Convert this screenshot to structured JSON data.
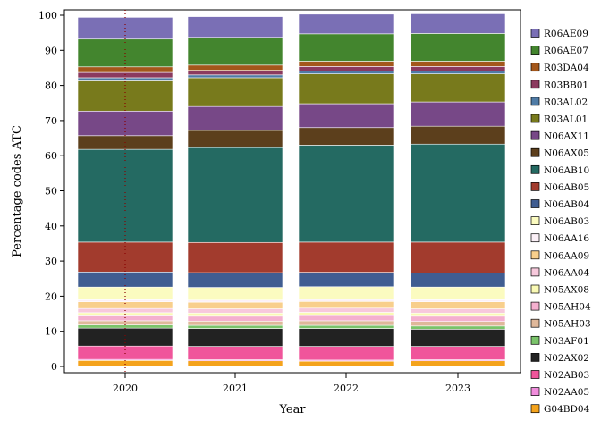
{
  "chart_data": {
    "type": "bar",
    "stacked": true,
    "title": "",
    "xlabel": "Year",
    "ylabel": "Percentage codes ATC",
    "categories": [
      "2020",
      "2021",
      "2022",
      "2023"
    ],
    "ylim": [
      0,
      100
    ],
    "yticks": [
      0,
      10,
      20,
      30,
      40,
      50,
      60,
      70,
      80,
      90,
      100
    ],
    "grid": false,
    "legend_position": "right",
    "reference_line": {
      "x": "2020",
      "style": "dotted",
      "color": "#8b0000"
    },
    "series": [
      {
        "name": "G04BD04",
        "color": "#f4a31c",
        "values": [
          1.7,
          1.6,
          1.5,
          1.6
        ]
      },
      {
        "name": "N02AA05",
        "color": "#f08cdc",
        "values": [
          0.3,
          0.3,
          0.3,
          0.3
        ]
      },
      {
        "name": "N02AB03",
        "color": "#f0559b",
        "values": [
          3.8,
          3.8,
          3.9,
          3.8
        ]
      },
      {
        "name": "N02AX02",
        "color": "#222222",
        "values": [
          5.1,
          5.1,
          5.1,
          4.9
        ]
      },
      {
        "name": "N03AF01",
        "color": "#7ac36a",
        "values": [
          0.9,
          0.9,
          0.9,
          0.9
        ]
      },
      {
        "name": "N05AH03",
        "color": "#dfb89a",
        "values": [
          1.2,
          1.2,
          1.3,
          1.3
        ]
      },
      {
        "name": "N05AH04",
        "color": "#f4b0cf",
        "values": [
          1.4,
          1.4,
          1.5,
          1.5
        ]
      },
      {
        "name": "N05AX08",
        "color": "#fafab5",
        "values": [
          0.9,
          0.9,
          0.9,
          0.9
        ]
      },
      {
        "name": "N06AA04",
        "color": "#f7c9dc",
        "values": [
          1.2,
          1.2,
          1.2,
          1.2
        ]
      },
      {
        "name": "N06AA09",
        "color": "#f8cf8c",
        "values": [
          1.9,
          1.9,
          1.9,
          2.0
        ]
      },
      {
        "name": "N06AA16",
        "color": "#fbf0f7",
        "values": [
          0.6,
          0.6,
          0.6,
          0.6
        ]
      },
      {
        "name": "N06AB03",
        "color": "#fbfbc0",
        "values": [
          3.6,
          3.6,
          3.6,
          3.6
        ]
      },
      {
        "name": "N06AB04",
        "color": "#405d91",
        "values": [
          4.3,
          4.2,
          4.1,
          4.0
        ]
      },
      {
        "name": "N06AB05",
        "color": "#a23b2d",
        "values": [
          8.5,
          8.6,
          8.6,
          8.8
        ]
      },
      {
        "name": "N06AB10",
        "color": "#246a62",
        "values": [
          26.4,
          27.0,
          27.6,
          27.9
        ]
      },
      {
        "name": "N06AX05",
        "color": "#5c3f1c",
        "values": [
          3.9,
          4.9,
          5.0,
          5.1
        ]
      },
      {
        "name": "N06AX11",
        "color": "#774887",
        "values": [
          7.0,
          6.8,
          6.8,
          6.9
        ]
      },
      {
        "name": "R03AL01",
        "color": "#787a1c",
        "values": [
          8.6,
          8.2,
          8.5,
          8.0
        ]
      },
      {
        "name": "R03AL02",
        "color": "#4f7ba5",
        "values": [
          0.9,
          0.8,
          0.8,
          0.8
        ]
      },
      {
        "name": "R03BB01",
        "color": "#8b3a5f",
        "values": [
          1.5,
          1.3,
          1.3,
          1.3
        ]
      },
      {
        "name": "R03DA04",
        "color": "#a3571b",
        "values": [
          1.6,
          1.5,
          1.5,
          1.5
        ]
      },
      {
        "name": "R06AE07",
        "color": "#43852e",
        "values": [
          7.9,
          7.9,
          7.8,
          7.9
        ]
      },
      {
        "name": "R06AE09",
        "color": "#7a6fb5",
        "values": [
          6.2,
          5.9,
          5.6,
          5.6
        ]
      }
    ]
  }
}
